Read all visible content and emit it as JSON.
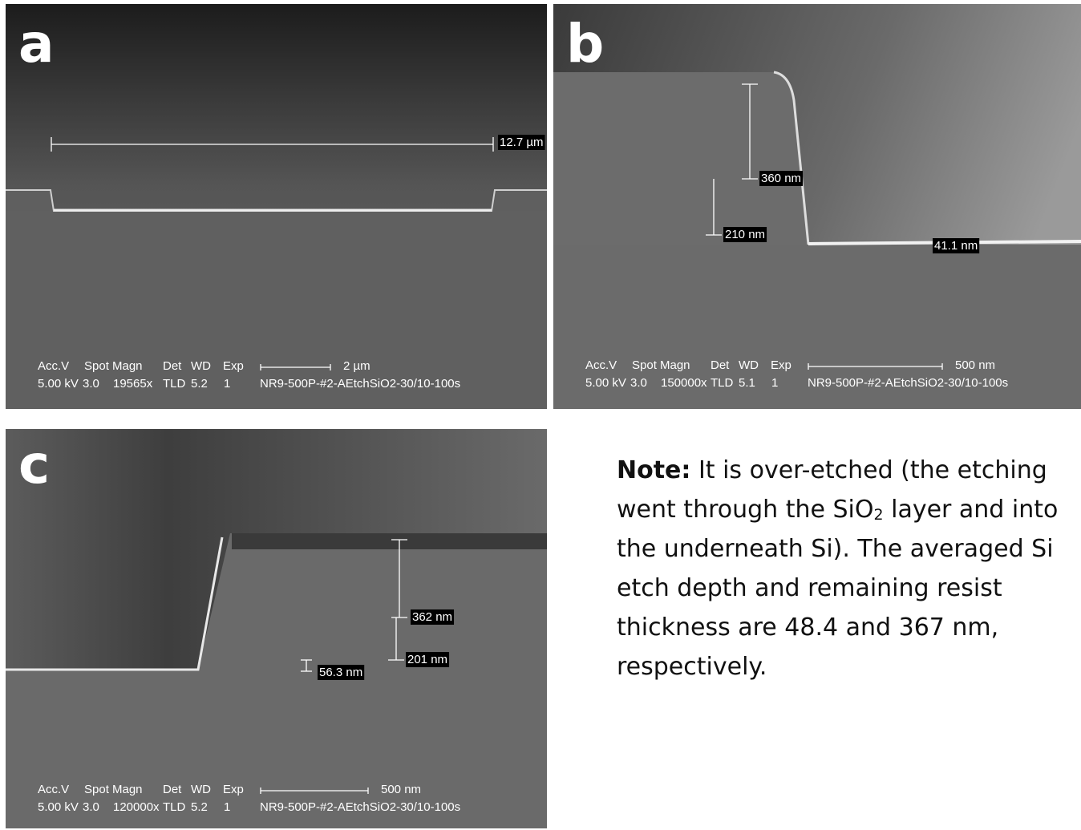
{
  "panels": [
    {
      "label": "a",
      "measurements": [
        "12.7 µm"
      ],
      "info": {
        "header": [
          "Acc.V",
          "Spot",
          "Magn",
          "Det",
          "WD",
          "Exp"
        ],
        "values": [
          "5.00 kV",
          "3.0",
          "19565x",
          "TLD",
          "5.2",
          "1"
        ],
        "scale": "2 µm",
        "sample": "NR9-500P-#2-AEtchSiO2-30/10-100s"
      }
    },
    {
      "label": "b",
      "measurements": [
        "360 nm",
        "210 nm",
        "41.1 nm"
      ],
      "info": {
        "header": [
          "Acc.V",
          "Spot",
          "Magn",
          "Det",
          "WD",
          "Exp"
        ],
        "values": [
          "5.00 kV",
          "3.0",
          "150000x",
          "TLD",
          "5.1",
          "1"
        ],
        "scale": "500 nm",
        "sample": "NR9-500P-#2-AEtchSiO2-30/10-100s"
      }
    },
    {
      "label": "c",
      "measurements": [
        "362 nm",
        "201 nm",
        "56.3 nm"
      ],
      "info": {
        "header": [
          "Acc.V",
          "Spot",
          "Magn",
          "Det",
          "WD",
          "Exp"
        ],
        "values": [
          "5.00 kV",
          "3.0",
          "120000x",
          "TLD",
          "5.2",
          "1"
        ],
        "scale": "500 nm",
        "sample": "NR9-500P-#2-AEtchSiO2-30/10-100s"
      }
    }
  ],
  "note": {
    "label": "Note:",
    "text_before": "It is over-etched (the etching went through the SiO",
    "subscript": "2",
    "text_after": " layer and into the underneath Si). The averaged Si etch depth and remaining resist thickness are 48.4 and 367 nm, respectively."
  }
}
